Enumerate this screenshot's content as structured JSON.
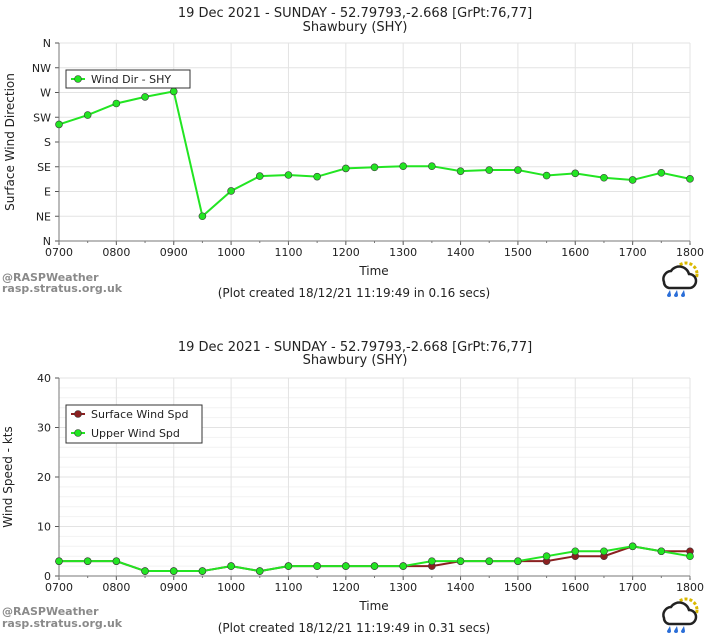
{
  "chart_data": [
    {
      "type": "line",
      "title": "19 Dec 2021 - SUNDAY - 52.79793,-2.668 [GrPt:76,77]",
      "subtitle": "Shawbury (SHY)",
      "xlabel": "Time",
      "ylabel": "Surface Wind Direction",
      "x_ticks": [
        "0700",
        "0800",
        "0900",
        "1000",
        "1100",
        "1200",
        "1300",
        "1400",
        "1500",
        "1600",
        "1700",
        "1800"
      ],
      "y_ticks": [
        "N",
        "NE",
        "E",
        "SE",
        "S",
        "SW",
        "W",
        "NW",
        "N"
      ],
      "y_tick_degrees": [
        0,
        45,
        90,
        135,
        180,
        225,
        270,
        315,
        360
      ],
      "ylim": [
        0,
        360
      ],
      "x": [
        "0700",
        "0730",
        "0800",
        "0830",
        "0900",
        "0930",
        "1000",
        "1030",
        "1100",
        "1130",
        "1200",
        "1230",
        "1300",
        "1330",
        "1400",
        "1430",
        "1500",
        "1530",
        "1600",
        "1630",
        "1700",
        "1730",
        "1800"
      ],
      "series": [
        {
          "name": "Wind Dir - SHY",
          "color": "#22e522",
          "values": [
            212,
            229,
            250,
            262,
            272,
            45,
            91,
            118,
            120,
            117,
            132,
            134,
            136,
            136,
            127,
            129,
            129,
            119,
            123,
            115,
            111,
            124,
            113
          ]
        }
      ],
      "legend_position": "top-left",
      "grid": true,
      "footer": "(Plot created 18/12/21 11:19:49 in 0.16 secs)"
    },
    {
      "type": "line",
      "title": "19 Dec 2021 - SUNDAY - 52.79793,-2.668 [GrPt:76,77]",
      "subtitle": "Shawbury (SHY)",
      "xlabel": "Time",
      "ylabel": "Wind Speed - kts",
      "x_ticks": [
        "0700",
        "0800",
        "0900",
        "1000",
        "1100",
        "1200",
        "1300",
        "1400",
        "1500",
        "1600",
        "1700",
        "1800"
      ],
      "y_ticks": [
        "0",
        "10",
        "20",
        "30",
        "40"
      ],
      "ylim": [
        0,
        40
      ],
      "x": [
        "0700",
        "0730",
        "0800",
        "0830",
        "0900",
        "0930",
        "1000",
        "1030",
        "1100",
        "1130",
        "1200",
        "1230",
        "1300",
        "1330",
        "1400",
        "1430",
        "1500",
        "1530",
        "1600",
        "1630",
        "1700",
        "1730",
        "1800"
      ],
      "series": [
        {
          "name": "Surface Wind Spd",
          "color": "#8b2020",
          "values": [
            3,
            3,
            3,
            1,
            1,
            1,
            2,
            1,
            2,
            2,
            2,
            2,
            2,
            2,
            3,
            3,
            3,
            3,
            4,
            4,
            6,
            5,
            5
          ]
        },
        {
          "name": "Upper Wind Spd",
          "color": "#22e522",
          "values": [
            3,
            3,
            3,
            1,
            1,
            1,
            2,
            1,
            2,
            2,
            2,
            2,
            2,
            3,
            3,
            3,
            3,
            4,
            5,
            5,
            6,
            5,
            4
          ]
        }
      ],
      "legend_position": "top-left",
      "grid": true,
      "footer": "(Plot created 18/12/21 11:19:49 in 0.31 secs)"
    }
  ],
  "watermark": {
    "line1": "@RASPWeather",
    "line2": "rasp.stratus.org.uk",
    "icon": "cloud-rain-sun-icon"
  }
}
